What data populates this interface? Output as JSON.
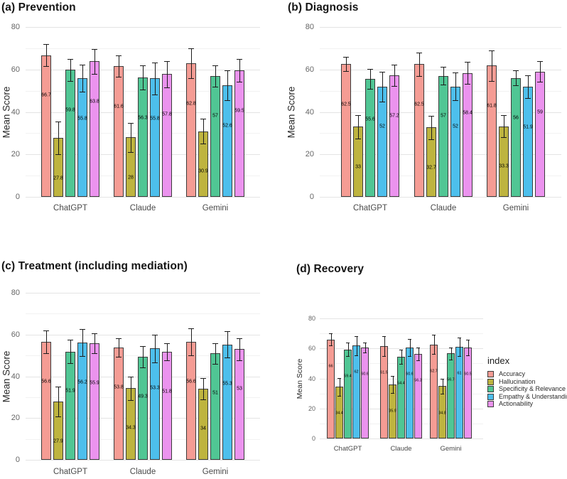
{
  "figure": {
    "ylabel": "Mean Score",
    "categories": [
      "ChatGPT",
      "Claude",
      "Gemini"
    ]
  },
  "colors": {
    "accuracy": "#F59C94",
    "hallucination": "#BEB43F",
    "specificity": "#50C694",
    "empathy": "#4DBFEC",
    "actionability": "#EB93EE",
    "bar_border": "#3c3c3c",
    "grid_major": "#e4e4e4",
    "grid_minor": "#f2f2f2"
  },
  "legend": {
    "title": "index",
    "entries": [
      {
        "label": "Accuracy",
        "color": "#F59C94"
      },
      {
        "label": "Hallucination",
        "color": "#BEB43F"
      },
      {
        "label": "Specificity & Relevance",
        "color": "#50C694"
      },
      {
        "label": "Empathy & Understanding",
        "color": "#4DBFEC"
      },
      {
        "label": "Actionability",
        "color": "#EB93EE"
      }
    ]
  },
  "chart_data": [
    {
      "type": "bar",
      "title": "(a) Prevention",
      "ylabel": "Mean Score",
      "ylim": [
        0,
        80
      ],
      "yticks": [
        0,
        20,
        40,
        60,
        80
      ],
      "grid": true,
      "categories": [
        "ChatGPT",
        "Claude",
        "Gemini"
      ],
      "series": [
        {
          "name": "Accuracy",
          "color": "#F59C94",
          "values": [
            66.7,
            61.6,
            62.8
          ],
          "errors": [
            5.2,
            5.0,
            7.0
          ]
        },
        {
          "name": "Hallucination",
          "color": "#BEB43F",
          "values": [
            27.8,
            28,
            30.9
          ],
          "errors": [
            7.7,
            6.9,
            5.9
          ]
        },
        {
          "name": "Specificity & Relevance",
          "color": "#50C694",
          "values": [
            59.8,
            56.3,
            57
          ],
          "errors": [
            5.3,
            5.6,
            5.0
          ]
        },
        {
          "name": "Empathy & Understanding",
          "color": "#4DBFEC",
          "values": [
            55.8,
            55.8,
            52.6
          ],
          "errors": [
            6.3,
            7.5,
            7.1
          ]
        },
        {
          "name": "Actionability",
          "color": "#EB93EE",
          "values": [
            63.8,
            57.8,
            59.5
          ],
          "errors": [
            5.8,
            6.2,
            5.3
          ]
        }
      ]
    },
    {
      "type": "bar",
      "title": "(b) Diagnosis",
      "ylabel": "Mean Score",
      "ylim": [
        0,
        80
      ],
      "yticks": [
        0,
        20,
        40,
        60,
        80
      ],
      "grid": true,
      "categories": [
        "ChatGPT",
        "Claude",
        "Gemini"
      ],
      "series": [
        {
          "name": "Accuracy",
          "color": "#F59C94",
          "values": [
            62.5,
            62.5,
            61.8
          ],
          "errors": [
            3.4,
            5.5,
            7.2
          ]
        },
        {
          "name": "Hallucination",
          "color": "#BEB43F",
          "values": [
            33,
            32.7,
            33.3
          ],
          "errors": [
            5.6,
            5.5,
            5.1
          ]
        },
        {
          "name": "Specificity & Relevance",
          "color": "#50C694",
          "values": [
            55.6,
            57,
            56
          ],
          "errors": [
            4.7,
            4.2,
            3.5
          ]
        },
        {
          "name": "Empathy & Understanding",
          "color": "#4DBFEC",
          "values": [
            52,
            52,
            51.9
          ],
          "errors": [
            7.0,
            6.5,
            5.4
          ]
        },
        {
          "name": "Actionability",
          "color": "#EB93EE",
          "values": [
            57.2,
            58.4,
            59
          ],
          "errors": [
            4.9,
            5.1,
            4.8
          ]
        }
      ]
    },
    {
      "type": "bar",
      "title": "(c) Treatment (including mediation)",
      "ylabel": "Mean Score",
      "ylim": [
        0,
        80
      ],
      "yticks": [
        0,
        20,
        40,
        60,
        80
      ],
      "grid": true,
      "categories": [
        "ChatGPT",
        "Claude",
        "Gemini"
      ],
      "series": [
        {
          "name": "Accuracy",
          "color": "#F59C94",
          "values": [
            56.6,
            53.8,
            56.6
          ],
          "errors": [
            5.4,
            4.3,
            6.4
          ]
        },
        {
          "name": "Hallucination",
          "color": "#BEB43F",
          "values": [
            27.9,
            34.3,
            34
          ],
          "errors": [
            7.2,
            5.7,
            5.0
          ]
        },
        {
          "name": "Specificity & Relevance",
          "color": "#50C694",
          "values": [
            51.9,
            49.3,
            51
          ],
          "errors": [
            5.5,
            5.2,
            4.9
          ]
        },
        {
          "name": "Empathy & Understanding",
          "color": "#4DBFEC",
          "values": [
            56.2,
            53.3,
            55.3
          ],
          "errors": [
            6.6,
            6.5,
            6.4
          ]
        },
        {
          "name": "Actionability",
          "color": "#EB93EE",
          "values": [
            55.9,
            51.8,
            53
          ],
          "errors": [
            4.8,
            4.0,
            5.2
          ]
        }
      ]
    },
    {
      "type": "bar",
      "title": "(d) Recovery",
      "ylabel": "Mean Score",
      "ylim": [
        0,
        80
      ],
      "yticks": [
        0,
        20,
        40,
        60,
        80
      ],
      "grid": true,
      "categories": [
        "ChatGPT",
        "Claude",
        "Gemini"
      ],
      "series": [
        {
          "name": "Accuracy",
          "color": "#F59C94",
          "values": [
            66,
            61.5,
            62.7
          ],
          "errors": [
            3.9,
            6.7,
            6.4
          ]
        },
        {
          "name": "Hallucination",
          "color": "#BEB43F",
          "values": [
            34.4,
            35.9,
            34.8
          ],
          "errors": [
            5.9,
            5.6,
            5.0
          ]
        },
        {
          "name": "Specificity & Relevance",
          "color": "#50C694",
          "values": [
            59.4,
            54.4,
            56.7
          ],
          "errors": [
            4.6,
            4.6,
            4.0
          ]
        },
        {
          "name": "Empathy & Understanding",
          "color": "#4DBFEC",
          "values": [
            62,
            60.6,
            61
          ],
          "errors": [
            6.4,
            5.7,
            6.0
          ]
        },
        {
          "name": "Actionability",
          "color": "#EB93EE",
          "values": [
            60.6,
            56.3,
            60.5
          ],
          "errors": [
            3.4,
            4.4,
            5.1
          ]
        }
      ]
    }
  ]
}
